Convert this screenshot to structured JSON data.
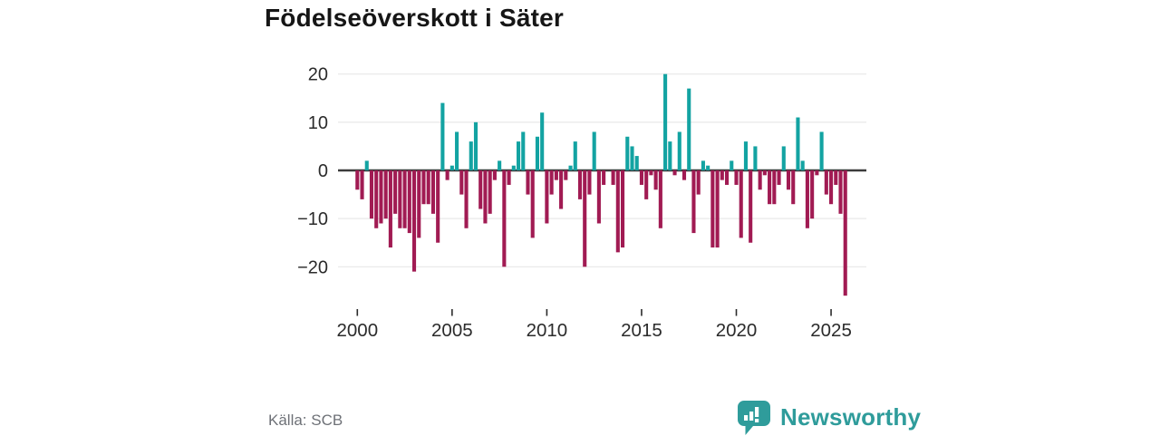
{
  "title": "Födelseöverskott i Säter",
  "source": {
    "text": "Källa: SCB"
  },
  "logo": {
    "text": "Newsworthy",
    "icon": "speech-bubble-bar-chart-icon"
  },
  "colors": {
    "positive_bar": "#13a3a2",
    "negative_bar": "#a11b53",
    "zero_line": "#3c3c3c",
    "gridline": "#e8e8e8",
    "tick_text": "#2b2b2b",
    "title_text": "#161616",
    "source_text": "#6e7177",
    "logo_teal": "#2f9c9b",
    "background": "#ffffff"
  },
  "chart_data": {
    "type": "bar",
    "title": "Födelseöverskott i Säter",
    "frequency": "quarterly",
    "x_start": "2000-Q1",
    "x_end": "2025-Q4",
    "xlabel": "",
    "ylabel": "",
    "ylim": [
      -27,
      22
    ],
    "grid": true,
    "legend": "none",
    "yticks": [
      20,
      10,
      0,
      -10,
      -20
    ],
    "ytick_labels": [
      "20",
      "10",
      "0",
      "−10",
      "−20"
    ],
    "xticks": [
      2000,
      2005,
      2010,
      2015,
      2020,
      2025
    ],
    "xtick_labels": [
      "2000",
      "2005",
      "2010",
      "2015",
      "2020",
      "2025"
    ],
    "values": [
      -4,
      -6,
      2,
      -10,
      -12,
      -11,
      -10,
      -16,
      -9,
      -12,
      -12,
      -13,
      -21,
      -14,
      -7,
      -7,
      -9,
      -15,
      14,
      -2,
      1,
      8,
      -5,
      -12,
      6,
      10,
      -8,
      -11,
      -9,
      -2,
      2,
      -20,
      -3,
      1,
      6,
      8,
      -5,
      -14,
      7,
      12,
      -11,
      -5,
      -2,
      -8,
      -2,
      1,
      6,
      -6,
      -20,
      -5,
      8,
      -11,
      -3,
      0,
      -3,
      -17,
      -16,
      7,
      5,
      3,
      -3,
      -6,
      -1,
      -4,
      -12,
      20,
      6,
      -1,
      8,
      -2,
      17,
      -13,
      -5,
      2,
      1,
      -16,
      -16,
      -2,
      -3,
      2,
      -3,
      -14,
      6,
      -15,
      5,
      -4,
      -1,
      -7,
      -7,
      -3,
      5,
      -4,
      -7,
      11,
      2,
      -12,
      -10,
      -1,
      8,
      -5,
      -7,
      -3,
      -9,
      -26
    ]
  }
}
